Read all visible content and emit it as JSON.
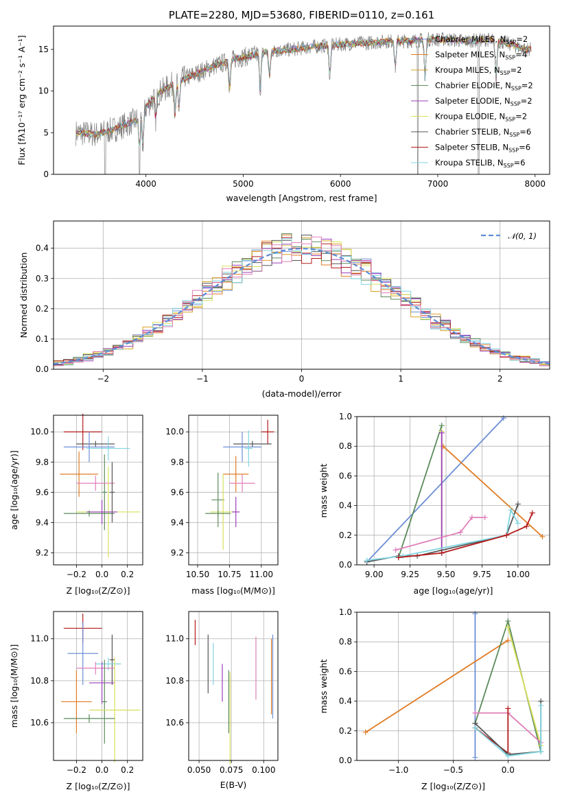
{
  "title": "PLATE=2280, MJD=53680, FIBERID=0110, z=0.161",
  "colors": {
    "Chabrier MILES": "#6b8ed6",
    "Salpeter MILES": "#e07b22",
    "Kroupa MILES": "#d9a024",
    "Chabrier ELODIE": "#5b8a5b",
    "Salpeter ELODIE": "#9b3dba",
    "Kroupa ELODIE": "#d8e05a",
    "Chabrier STELIB": "#555555",
    "Salpeter STELIB": "#b41a1a",
    "Kroupa STELIB": "#7fd4e0",
    "pink": "#e07eb8",
    "data": "#7f7f7f",
    "normal": "#5b8dd6"
  },
  "chart_data": [
    {
      "type": "line",
      "id": "spectrum",
      "xlabel": "wavelength [Angstrom, rest frame]",
      "ylabel": "Flux [fλ10⁻¹⁷ erg cm⁻² s⁻¹ A⁻¹]",
      "xlim": [
        3050,
        8150
      ],
      "ylim": [
        0,
        17.8
      ],
      "xticks": [
        "4000",
        "5000",
        "6000",
        "7000",
        "8000"
      ],
      "yticks": [
        "0",
        "5",
        "10",
        "15"
      ],
      "legend_position": "top-right",
      "legend": [
        {
          "label": "Chabrier MILES, N",
          "sub": "SSP",
          "suffix": "=2"
        },
        {
          "label": "Salpeter MILES, N",
          "sub": "SSP",
          "suffix": "=4"
        },
        {
          "label": "Kroupa MILES, N",
          "sub": "SSP",
          "suffix": "=2"
        },
        {
          "label": "Chabrier ELODIE, N",
          "sub": "SSP",
          "suffix": "=2"
        },
        {
          "label": "Salpeter ELODIE, N",
          "sub": "SSP",
          "suffix": "=2"
        },
        {
          "label": "Kroupa ELODIE, N",
          "sub": "SSP",
          "suffix": "=2"
        },
        {
          "label": "Chabrier STELIB, N",
          "sub": "SSP",
          "suffix": "=6"
        },
        {
          "label": "Salpeter STELIB, N",
          "sub": "SSP",
          "suffix": "=6"
        },
        {
          "label": "Kroupa STELIB, N",
          "sub": "SSP",
          "suffix": "=6"
        }
      ],
      "continuum": {
        "x": [
          3300,
          3500,
          3700,
          3900,
          4000,
          4100,
          4300,
          4500,
          4700,
          4900,
          5100,
          5300,
          5500,
          5700,
          5900,
          6100,
          6300,
          6500,
          6700,
          6900,
          7100,
          7300,
          7500,
          7700,
          7900
        ],
        "y": [
          5.0,
          4.8,
          5.5,
          6.5,
          8.0,
          9.5,
          11.0,
          12.0,
          13.0,
          13.8,
          14.3,
          14.8,
          15.0,
          15.3,
          15.5,
          15.7,
          15.8,
          16.0,
          16.0,
          16.2,
          16.2,
          16.0,
          16.2,
          15.8,
          15.0
        ]
      }
    },
    {
      "type": "bar",
      "id": "residuals",
      "xlabel": "(data-model)/error",
      "ylabel": "Normed distribution",
      "xlim": [
        -2.5,
        2.5
      ],
      "ylim": [
        0,
        0.49
      ],
      "xticks": [
        "−2",
        "−1",
        "0",
        "1",
        "2"
      ],
      "yticks": [
        "0.0",
        "0.1",
        "0.2",
        "0.3",
        "0.4"
      ],
      "legend": "𝒩(0, 1)",
      "bin_width": 0.1,
      "bin_start": -2.5
    },
    {
      "type": "scatter",
      "id": "age-vs-Z",
      "xlabel": "Z [log₁₀(Z/Z⊙)]",
      "ylabel": "age  [log₁₀(age/yr)]",
      "xlim": [
        -0.38,
        0.32
      ],
      "ylim": [
        9.12,
        10.11
      ],
      "xticks": [
        "−0.2",
        "0.0",
        "0.2"
      ],
      "yticks": [
        "9.2",
        "9.4",
        "9.6",
        "9.8",
        "10.0"
      ]
    },
    {
      "type": "scatter",
      "id": "age-vs-mass",
      "xlabel": "mass [log₁₀(M/M⊙)]",
      "ylabel": "",
      "xlim": [
        10.43,
        11.13
      ],
      "ylim": [
        9.12,
        10.11
      ],
      "xticks": [
        "10.50",
        "10.75",
        "11.00"
      ],
      "yticks": [
        "9.2",
        "9.4",
        "9.6",
        "9.8",
        "10.0"
      ]
    },
    {
      "type": "line",
      "id": "weight-vs-age",
      "xlabel": "age  [log₁₀(age/yr)]",
      "ylabel": "mass weight",
      "xlim": [
        8.88,
        10.22
      ],
      "ylim": [
        0,
        1
      ],
      "xticks": [
        "9.00",
        "9.25",
        "9.50",
        "9.75",
        "10.00"
      ],
      "yticks": [
        "0.0",
        "0.2",
        "0.4",
        "0.6",
        "0.8",
        "1.0"
      ]
    },
    {
      "type": "scatter",
      "id": "mass-vs-Z",
      "xlabel": "Z [log₁₀(Z/Z⊙)]",
      "ylabel": "mass [log₁₀(M/M⊙)]",
      "xlim": [
        -0.38,
        0.32
      ],
      "ylim": [
        10.42,
        11.13
      ],
      "xticks": [
        "−0.2",
        "0.0",
        "0.2"
      ],
      "yticks": [
        "10.6",
        "10.8",
        "11.0"
      ]
    },
    {
      "type": "scatter",
      "id": "mass-vs-ebv",
      "xlabel": "E(B-V)",
      "ylabel": "",
      "xlim": [
        0.042,
        0.111
      ],
      "ylim": [
        10.42,
        11.13
      ],
      "xticks": [
        "0.050",
        "0.075",
        "0.100"
      ],
      "yticks": [
        "10.6",
        "10.8",
        "11.0"
      ]
    },
    {
      "type": "line",
      "id": "weight-vs-Z",
      "xlabel": "Z [log₁₀(Z/Z⊙)]",
      "ylabel": "mass weight",
      "xlim": [
        -1.38,
        0.38
      ],
      "ylim": [
        0,
        1
      ],
      "xticks": [
        "−1.0",
        "−0.5",
        "0.0"
      ],
      "yticks": [
        "0.0",
        "0.2",
        "0.4",
        "0.6",
        "0.8",
        "1.0"
      ]
    }
  ]
}
